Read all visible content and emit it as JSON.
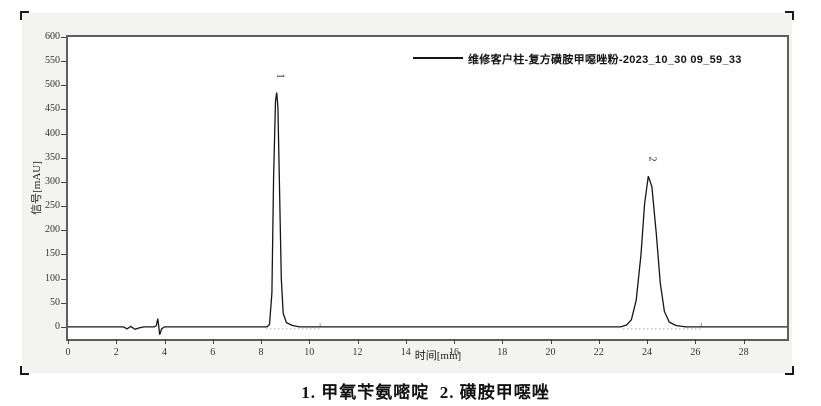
{
  "legend": {
    "series_label": "维修客户柱-复方磺胺甲噁唑粉-2023_10_30 09_59_33",
    "trailing_dot": "."
  },
  "caption": "1. 甲氧苄氨嘧啶  2. 磺胺甲噁唑",
  "colors": {
    "panel_bg": "#f3f3f0",
    "plot_bg": "#fefefe",
    "plot_border": "#5e5e5e",
    "trace": "#161616",
    "integration_baseline": "#b0b0b0"
  },
  "chart_data": {
    "type": "line",
    "title": "",
    "xlabel": "时间[min]",
    "ylabel": "信号[mAU]",
    "xlim": [
      0,
      29.8
    ],
    "ylim": [
      -25,
      600
    ],
    "x_ticks": [
      0,
      2,
      4,
      6,
      8,
      10,
      12,
      14,
      16,
      18,
      20,
      22,
      24,
      26,
      28
    ],
    "y_ticks": [
      0,
      50,
      100,
      150,
      200,
      250,
      300,
      350,
      400,
      450,
      500,
      550,
      600
    ],
    "grid": false,
    "legend_position": "top-right",
    "series": [
      {
        "name": "维修客户柱-复方磺胺甲噁唑粉-2023_10_30 09_59_33",
        "points": [
          [
            0,
            0
          ],
          [
            2.3,
            0
          ],
          [
            2.45,
            -4
          ],
          [
            2.6,
            1
          ],
          [
            2.78,
            -5
          ],
          [
            2.95,
            -2
          ],
          [
            3.15,
            0
          ],
          [
            3.58,
            0
          ],
          [
            3.66,
            3
          ],
          [
            3.72,
            17
          ],
          [
            3.76,
            2
          ],
          [
            3.8,
            -16
          ],
          [
            3.88,
            -4
          ],
          [
            4.0,
            0
          ],
          [
            8.25,
            0
          ],
          [
            8.35,
            5
          ],
          [
            8.45,
            70
          ],
          [
            8.52,
            310
          ],
          [
            8.6,
            468
          ],
          [
            8.65,
            485
          ],
          [
            8.7,
            455
          ],
          [
            8.76,
            300
          ],
          [
            8.84,
            100
          ],
          [
            8.92,
            28
          ],
          [
            9.05,
            9
          ],
          [
            9.3,
            3
          ],
          [
            9.6,
            0
          ],
          [
            22.9,
            0
          ],
          [
            23.15,
            4
          ],
          [
            23.35,
            15
          ],
          [
            23.55,
            55
          ],
          [
            23.75,
            150
          ],
          [
            23.9,
            255
          ],
          [
            24.05,
            312
          ],
          [
            24.2,
            290
          ],
          [
            24.38,
            195
          ],
          [
            24.55,
            90
          ],
          [
            24.72,
            32
          ],
          [
            24.92,
            10
          ],
          [
            25.2,
            3
          ],
          [
            25.6,
            0
          ],
          [
            29.8,
            0
          ]
        ]
      }
    ],
    "peaks": [
      {
        "label": "1",
        "t": 8.65,
        "value": 485
      },
      {
        "label": "2",
        "t": 24.05,
        "value": 312
      }
    ],
    "integration_baselines": [
      {
        "t1": 8.2,
        "t2": 10.45,
        "v": -4
      },
      {
        "t1": 23.0,
        "t2": 26.3,
        "v": -4
      }
    ],
    "baseline_markers": [
      {
        "t": 10.45
      },
      {
        "t": 26.25
      }
    ]
  }
}
